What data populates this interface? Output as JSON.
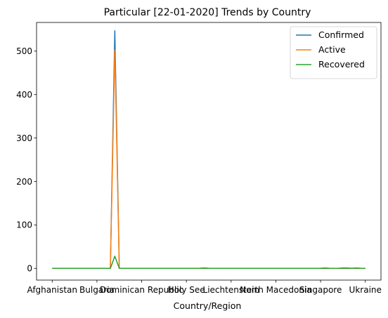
{
  "chart_data": {
    "type": "line",
    "title": "Particular [22-01-2020] Trends by Country",
    "xlabel": "Country/Region",
    "ylabel": "",
    "ylim": [
      -27,
      566
    ],
    "yticks": [
      0,
      100,
      200,
      300,
      400,
      500
    ],
    "xlim": [
      -3.5,
      73.5
    ],
    "categories": [
      "Afghanistan",
      "Bulgaria",
      "Dominican Republic",
      "Holy See",
      "Liechtenstein",
      "North Macedonia",
      "Singapore",
      "Ukraine"
    ],
    "category_positions": [
      0,
      10,
      20,
      30,
      40,
      50,
      60,
      70
    ],
    "n_points": 71,
    "grid": false,
    "legend_position": "top-right",
    "series": [
      {
        "name": "Confirmed",
        "color": "#1f77b4",
        "spikes": [
          [
            13,
            0
          ],
          [
            14,
            547
          ],
          [
            15,
            0
          ],
          [
            34,
            1
          ],
          [
            61,
            1
          ],
          [
            65,
            1
          ],
          [
            66,
            1
          ],
          [
            68,
            1
          ]
        ]
      },
      {
        "name": "Active",
        "color": "#ff7f0e",
        "spikes": [
          [
            13,
            0
          ],
          [
            14,
            503
          ],
          [
            15,
            0
          ],
          [
            34,
            1
          ],
          [
            61,
            1
          ],
          [
            65,
            1
          ],
          [
            66,
            1
          ],
          [
            68,
            1
          ]
        ]
      },
      {
        "name": "Recovered",
        "color": "#2ca02c",
        "spikes": [
          [
            13,
            0
          ],
          [
            14,
            28
          ],
          [
            15,
            0
          ]
        ]
      }
    ]
  }
}
